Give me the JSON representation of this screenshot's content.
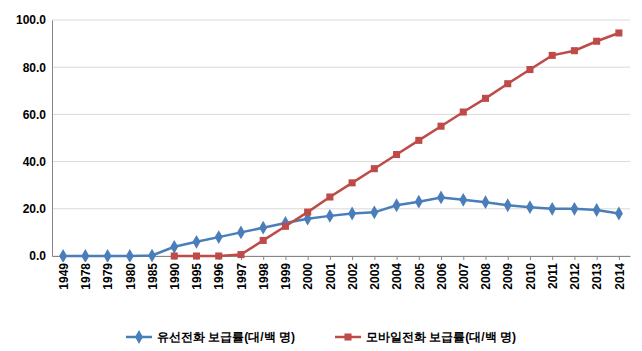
{
  "chart_data": {
    "type": "line",
    "categories": [
      "1949",
      "1978",
      "1979",
      "1980",
      "1985",
      "1990",
      "1995",
      "1996",
      "1997",
      "1998",
      "1999",
      "2000",
      "2001",
      "2002",
      "2003",
      "2004",
      "2005",
      "2006",
      "2007",
      "2008",
      "2009",
      "2010",
      "2011",
      "2012",
      "2013",
      "2014"
    ],
    "series": [
      {
        "name": "유선전화 보급률(대/백 명)",
        "color": "#4a7ebb",
        "marker": "diamond",
        "values": [
          0,
          0,
          0,
          0,
          0.2,
          3.9,
          6,
          8,
          10,
          12,
          14,
          15.8,
          17,
          18,
          18.5,
          21.5,
          23,
          24.8,
          23.8,
          22.8,
          21.5,
          20.7,
          20,
          20,
          19.5,
          18
        ]
      },
      {
        "name": "모바일전화 보급률(대/백 명)",
        "color": "#be4b48",
        "marker": "square",
        "values": [
          null,
          null,
          null,
          null,
          null,
          0,
          0,
          0,
          0.6,
          6.6,
          12.6,
          18.6,
          25,
          31,
          37,
          43,
          49,
          55,
          61,
          66.8,
          73,
          79,
          85,
          87,
          91,
          94.5
        ]
      }
    ],
    "ylim": [
      0,
      100
    ],
    "yticks": [
      {
        "value": 0,
        "label": "0.0"
      },
      {
        "value": 20,
        "label": "20.0"
      },
      {
        "value": 40,
        "label": "40.0"
      },
      {
        "value": 60,
        "label": "60.0"
      },
      {
        "value": 80,
        "label": "80.0"
      },
      {
        "value": 100,
        "label": "100.0"
      }
    ],
    "grid": true,
    "legend": "bottom"
  }
}
